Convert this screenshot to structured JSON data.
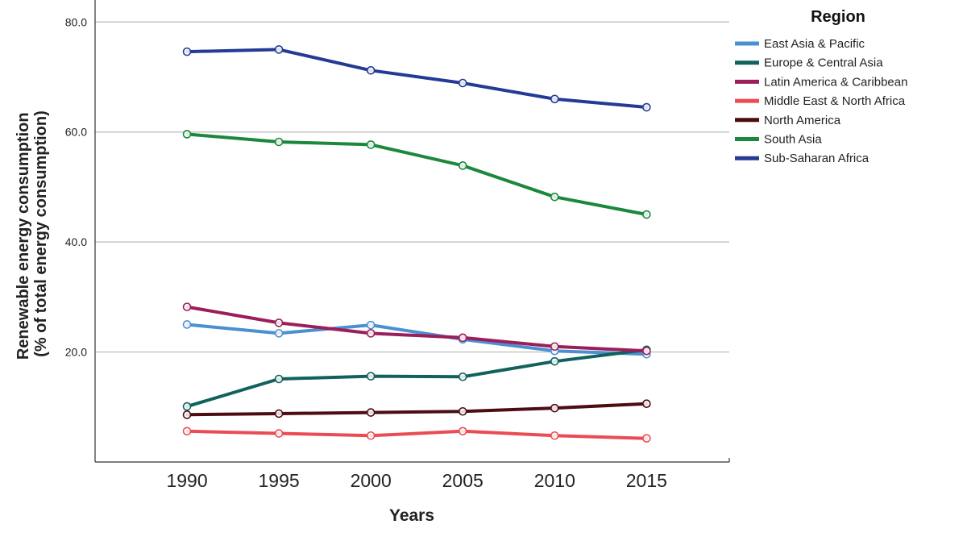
{
  "chart_data": {
    "type": "line",
    "xlabel": "Years",
    "ylabel_line1": "Renewable energy consumption",
    "ylabel_line2": "(% of total energy consumption)",
    "x": [
      1990,
      1995,
      2000,
      2005,
      2010,
      2015
    ],
    "x_tick_labels": [
      "1990",
      "1995",
      "2000",
      "2005",
      "2010",
      "2015"
    ],
    "xlim": [
      1985,
      2019.5
    ],
    "y_ticks": [
      20,
      40,
      60,
      80
    ],
    "y_tick_labels": [
      "20.0",
      "40.0",
      "60.0",
      "80.0"
    ],
    "ylim": [
      0,
      84
    ],
    "grid": "horizontal",
    "legend": {
      "title": "Region",
      "placement": "right"
    },
    "series": [
      {
        "name": "East Asia & Pacific",
        "color": "#4a90d0",
        "values": [
          25.0,
          23.4,
          24.9,
          22.3,
          20.2,
          19.6
        ]
      },
      {
        "name": "Europe & Central Asia",
        "color": "#11625c",
        "values": [
          10.1,
          15.1,
          15.6,
          15.5,
          18.3,
          20.4
        ]
      },
      {
        "name": "Latin America & Caribbean",
        "color": "#9b1e5a",
        "values": [
          28.2,
          25.3,
          23.4,
          22.6,
          21.0,
          20.2
        ]
      },
      {
        "name": "Middle East & North Africa",
        "color": "#ea4b55",
        "values": [
          5.6,
          5.2,
          4.8,
          5.6,
          4.8,
          4.3
        ]
      },
      {
        "name": "North America",
        "color": "#4c0c12",
        "values": [
          8.6,
          8.8,
          9.0,
          9.2,
          9.8,
          10.6
        ]
      },
      {
        "name": "South Asia",
        "color": "#1b883c",
        "values": [
          59.6,
          58.2,
          57.7,
          53.9,
          48.2,
          45.0
        ]
      },
      {
        "name": "Sub-Saharan Africa",
        "color": "#243a94",
        "values": [
          74.6,
          75.0,
          71.2,
          68.9,
          66.0,
          64.5
        ]
      }
    ]
  }
}
